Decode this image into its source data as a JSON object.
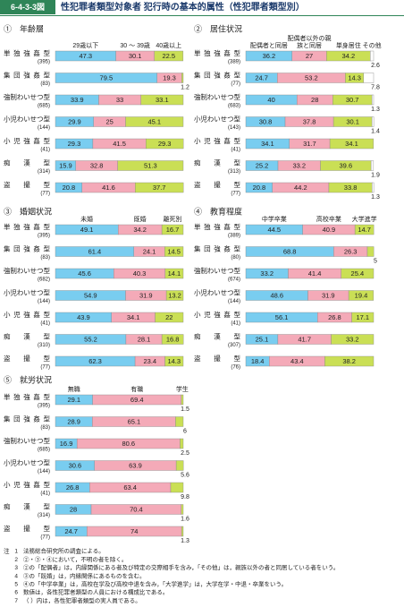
{
  "header": {
    "figure_no": "6-4-3-3図",
    "title": "性犯罪者類型対象者 犯行時の基本的属性（性犯罪者類型別）"
  },
  "chart_data": [
    {
      "type": "bar",
      "orientation": "horizontal",
      "stacked": true,
      "title": "①　年齢層",
      "categories": [
        "単独強姦型",
        "集団強姦型",
        "強制わいせつ型",
        "小児わいせつ型",
        "小児強姦型",
        "痴漢型",
        "盗撮型"
      ],
      "counts": [
        "(395)",
        "(83)",
        "(685)",
        "(144)",
        "(41)",
        "(314)",
        "(77)"
      ],
      "xlim": [
        0,
        100
      ],
      "series": [
        {
          "name": "29歳以下",
          "color": "#79cdf0",
          "values": [
            47.3,
            79.5,
            33.9,
            29.9,
            29.3,
            15.9,
            20.8
          ]
        },
        {
          "name": "30 ～ 39歳",
          "color": "#f4aab8",
          "values": [
            30.1,
            19.3,
            33.0,
            25.0,
            41.5,
            32.8,
            41.6
          ]
        },
        {
          "name": "40歳以上",
          "color": "#cadf55",
          "values": [
            22.5,
            1.2,
            33.1,
            45.1,
            29.3,
            51.3,
            37.7
          ]
        }
      ]
    },
    {
      "type": "bar",
      "orientation": "horizontal",
      "stacked": true,
      "title": "②　居住状況",
      "categories": [
        "単独強姦型",
        "集団強姦型",
        "強制わいせつ型",
        "小児わいせつ型",
        "小児強姦型",
        "痴漢型",
        "盗撮型"
      ],
      "counts": [
        "(389)",
        "(77)",
        "(683)",
        "(143)",
        "(41)",
        "(313)",
        "(77)"
      ],
      "xlim": [
        0,
        100
      ],
      "series": [
        {
          "name": "配偶者と同居",
          "color": "#79cdf0",
          "values": [
            36.2,
            24.7,
            40.0,
            30.8,
            34.1,
            25.2,
            20.8
          ]
        },
        {
          "name": "配偶者以外の親族と同居",
          "color": "#f4aab8",
          "values": [
            27.0,
            53.2,
            28.0,
            37.8,
            31.7,
            33.2,
            44.2
          ]
        },
        {
          "name": "単身居住",
          "color": "#cadf55",
          "values": [
            34.2,
            14.3,
            30.7,
            30.1,
            34.1,
            39.6,
            33.8
          ]
        },
        {
          "name": "その他",
          "color": "#ffffff",
          "values": [
            2.6,
            7.8,
            1.3,
            1.4,
            null,
            1.9,
            1.3
          ]
        }
      ]
    },
    {
      "type": "bar",
      "orientation": "horizontal",
      "stacked": true,
      "title": "③　婚姻状況",
      "categories": [
        "単独強姦型",
        "集団強姦型",
        "強制わいせつ型",
        "小児わいせつ型",
        "小児強姦型",
        "痴漢型",
        "盗撮型"
      ],
      "counts": [
        "(395)",
        "(83)",
        "(682)",
        "(144)",
        "(41)",
        "(310)",
        "(77)"
      ],
      "xlim": [
        0,
        100
      ],
      "series": [
        {
          "name": "未婚",
          "color": "#79cdf0",
          "values": [
            49.1,
            61.4,
            45.6,
            54.9,
            43.9,
            55.2,
            62.3
          ]
        },
        {
          "name": "既婚",
          "color": "#f4aab8",
          "values": [
            34.2,
            24.1,
            40.3,
            31.9,
            34.1,
            28.1,
            23.4
          ]
        },
        {
          "name": "離死別",
          "color": "#cadf55",
          "values": [
            16.7,
            14.5,
            14.1,
            13.2,
            22.0,
            16.8,
            14.3
          ]
        }
      ]
    },
    {
      "type": "bar",
      "orientation": "horizontal",
      "stacked": true,
      "title": "④　教育程度",
      "categories": [
        "単独強姦型",
        "集団強姦型",
        "強制わいせつ型",
        "小児わいせつ型",
        "小児強姦型",
        "痴漢型",
        "盗撮型"
      ],
      "counts": [
        "(389)",
        "(80)",
        "(674)",
        "(144)",
        "(41)",
        "(307)",
        "(76)"
      ],
      "xlim": [
        0,
        100
      ],
      "series": [
        {
          "name": "中学卒業",
          "color": "#79cdf0",
          "values": [
            44.5,
            68.8,
            33.2,
            48.6,
            56.1,
            25.1,
            18.4
          ]
        },
        {
          "name": "高校卒業",
          "color": "#f4aab8",
          "values": [
            40.9,
            26.3,
            41.4,
            31.9,
            26.8,
            41.7,
            43.4
          ]
        },
        {
          "name": "大学進学",
          "color": "#cadf55",
          "values": [
            14.7,
            5.0,
            25.4,
            19.4,
            17.1,
            33.2,
            38.2
          ]
        }
      ]
    },
    {
      "type": "bar",
      "orientation": "horizontal",
      "stacked": true,
      "title": "⑤　就労状況",
      "categories": [
        "単独強姦型",
        "集団強姦型",
        "強制わいせつ型",
        "小児わいせつ型",
        "小児強姦型",
        "痴漢型",
        "盗撮型"
      ],
      "counts": [
        "(395)",
        "(83)",
        "(685)",
        "(144)",
        "(41)",
        "(314)",
        "(77)"
      ],
      "xlim": [
        0,
        100
      ],
      "series": [
        {
          "name": "無職",
          "color": "#79cdf0",
          "values": [
            29.1,
            28.9,
            16.9,
            30.6,
            26.8,
            28.0,
            24.7
          ]
        },
        {
          "name": "有職",
          "color": "#f4aab8",
          "values": [
            69.4,
            65.1,
            80.6,
            63.9,
            63.4,
            70.4,
            74.0
          ]
        },
        {
          "name": "学生",
          "color": "#cadf55",
          "values": [
            1.5,
            6.0,
            2.5,
            5.6,
            9.8,
            1.6,
            1.3
          ]
        }
      ]
    }
  ],
  "notes_label": "注",
  "notes": [
    {
      "num": "1",
      "text": "法務総合研究所の調査による。"
    },
    {
      "num": "2",
      "text": "②・③・④において，不明の者を除く。"
    },
    {
      "num": "3",
      "text": "②の「配偶者」は，内縁関係にある者及び特定の交際相手を含み，「その他」は，親族以外の者と同居している者をいう。"
    },
    {
      "num": "4",
      "text": "③の「既婚」は，内縁関係にあるものを含む。"
    },
    {
      "num": "5",
      "text": "④の「中学卒業」は，高校在学及び高校中退を含み，「大学進学」は，大学在学・中退・卒業をいう。"
    },
    {
      "num": "6",
      "text": "数値は，各性犯罪者類型の人員における構成比である。"
    },
    {
      "num": "7",
      "text": "（ ）内は，各性犯罪者類型の実人員である。"
    }
  ]
}
